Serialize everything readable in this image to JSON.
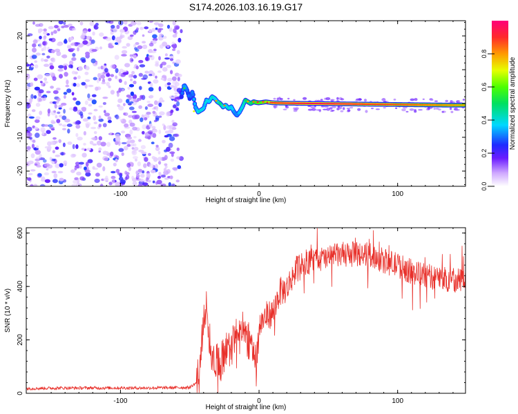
{
  "title": "S174.2026.103.16.19.G17",
  "chart_data": [
    {
      "type": "heatmap",
      "title": "S174.2026.103.16.19.G17",
      "xlabel": "Height of straight line (km)",
      "ylabel": "Frequency (Hz)",
      "xlim": [
        -168,
        149
      ],
      "ylim": [
        -24.5,
        24.5
      ],
      "x_ticks": [
        -100,
        0,
        100
      ],
      "y_ticks": [
        -20,
        -10,
        0,
        10,
        20
      ],
      "noise_region": {
        "x_from": -168,
        "x_to": -56,
        "description": "scattered low-amplitude noise"
      },
      "track": {
        "x": [
          -56,
          -54,
          -52,
          -50,
          -48,
          -46,
          -44,
          -42,
          -40,
          -38,
          -36,
          -34,
          -32,
          -30,
          -28,
          -26,
          -24,
          -22,
          -20,
          -18,
          -16,
          -14,
          -12,
          -10,
          -8,
          -6,
          -4,
          -2,
          0,
          5,
          10,
          20,
          40,
          60,
          80,
          100,
          120,
          140,
          148
        ],
        "y": [
          2.0,
          5.5,
          4.0,
          1.5,
          3.5,
          -1.0,
          -2.5,
          -2.0,
          -1.5,
          1.0,
          0.5,
          2.0,
          1.5,
          0.5,
          0.0,
          -1.0,
          -0.5,
          -1.5,
          -1.0,
          -2.5,
          -3.5,
          -2.5,
          -1.0,
          1.0,
          0.5,
          0.0,
          0.5,
          0.3,
          0.2,
          0.5,
          0.2,
          0.1,
          0.0,
          -0.1,
          -0.2,
          -0.3,
          -0.4,
          -0.5,
          -0.5
        ],
        "amplitude": [
          0.35,
          0.45,
          0.4,
          0.35,
          0.38,
          0.45,
          0.5,
          0.55,
          0.5,
          0.48,
          0.5,
          0.55,
          0.5,
          0.55,
          0.6,
          0.55,
          0.5,
          0.55,
          0.5,
          0.45,
          0.4,
          0.45,
          0.55,
          0.6,
          0.7,
          0.65,
          0.7,
          0.75,
          0.8,
          0.85,
          0.9,
          0.92,
          0.95,
          0.93,
          0.9,
          0.88,
          0.85,
          0.82,
          0.8
        ]
      },
      "colorbar": {
        "label": "Normalized spectral amplitude",
        "range": [
          0.0,
          1.0
        ],
        "ticks": [
          "0.0",
          "0.2",
          "0.4",
          "0.6",
          "0.8"
        ]
      }
    },
    {
      "type": "line",
      "xlabel": "Height of straight line (km)",
      "ylabel": "SNR (10 * v/v)",
      "xlim": [
        -168,
        149
      ],
      "ylim": [
        0,
        620
      ],
      "x_ticks": [
        -100,
        0,
        100
      ],
      "y_ticks": [
        0,
        200,
        400,
        600
      ],
      "series": [
        {
          "name": "SNR",
          "color": "#e8302a",
          "x": [
            -168,
            -140,
            -110,
            -80,
            -50,
            -45,
            -42,
            -40,
            -38,
            -35,
            -30,
            -25,
            -20,
            -15,
            -10,
            -5,
            -2,
            0,
            5,
            10,
            15,
            20,
            25,
            30,
            40,
            50,
            60,
            70,
            80,
            90,
            100,
            110,
            120,
            130,
            140,
            148
          ],
          "y": [
            18,
            20,
            20,
            20,
            22,
            40,
            120,
            280,
            330,
            160,
            110,
            130,
            180,
            230,
            210,
            190,
            120,
            250,
            290,
            300,
            380,
            390,
            450,
            480,
            500,
            505,
            520,
            520,
            520,
            495,
            480,
            455,
            440,
            430,
            425,
            430
          ]
        }
      ]
    }
  ]
}
